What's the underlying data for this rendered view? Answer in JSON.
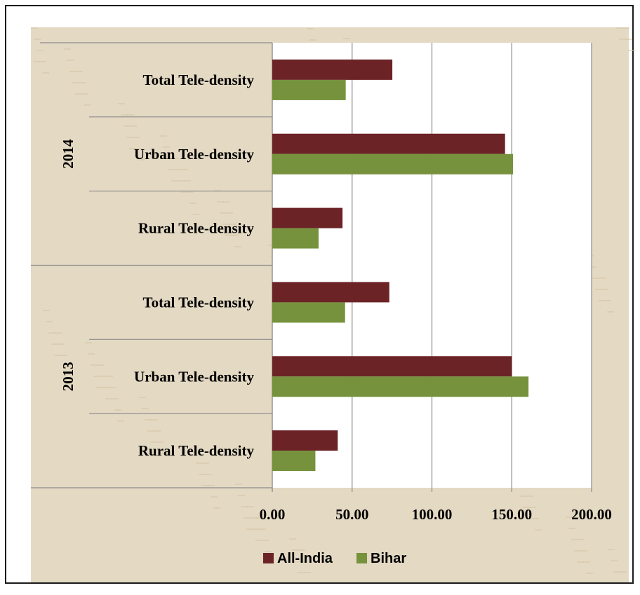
{
  "chart_data": {
    "type": "bar",
    "orientation": "horizontal",
    "groups": [
      {
        "year": "2014",
        "categories": [
          "Total Tele-density",
          "Urban Tele-density",
          "Rural Tele-density"
        ]
      },
      {
        "year": "2013",
        "categories": [
          "Total Tele-density",
          "Urban Tele-density",
          "Rural Tele-density"
        ]
      }
    ],
    "series": [
      {
        "name": "All-India",
        "color": "#6b2326",
        "values": [
          75.2,
          145.8,
          44.0,
          73.3,
          150.0,
          41.0
        ]
      },
      {
        "name": "Bihar",
        "color": "#76923c",
        "values": [
          46.0,
          150.8,
          29.0,
          45.6,
          160.5,
          27.0
        ]
      }
    ],
    "xlim": [
      0,
      200
    ],
    "xticks": [
      "0.00",
      "50.00",
      "100.00",
      "150.00",
      "200.00"
    ],
    "grid": true,
    "legend_position": "bottom",
    "background_color": "#e4d9c3",
    "plot_background_color": "#ffffff"
  }
}
